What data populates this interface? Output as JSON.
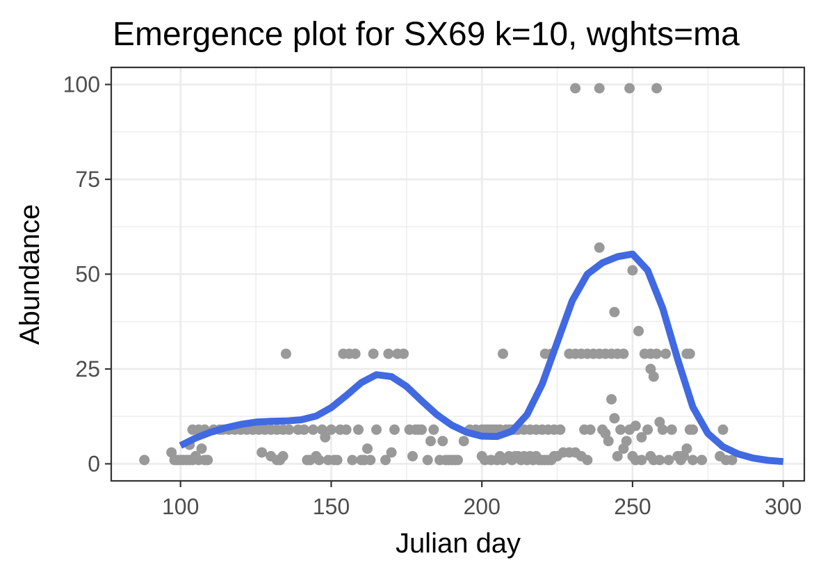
{
  "chart_data": {
    "type": "scatter",
    "title": "Emergence plot for SX69 k=10, wghts=ma",
    "xlabel": "Julian day",
    "ylabel": "Abundance",
    "xlim": [
      77,
      307
    ],
    "ylim": [
      -4.5,
      104.5
    ],
    "xticks": [
      100,
      150,
      200,
      250,
      300
    ],
    "xtick_labels": [
      "100",
      "150",
      "200",
      "250",
      "300"
    ],
    "yticks": [
      0,
      25,
      50,
      75,
      100
    ],
    "ytick_labels": [
      "0",
      "25",
      "50",
      "75",
      "100"
    ],
    "grid": true,
    "legend": "none",
    "colors": {
      "points": "#999999",
      "curve": "#4169e1",
      "grid": "#ebebeb",
      "frame": "#333333"
    },
    "series": [
      {
        "type": "scatter",
        "points": [
          [
            88,
            1
          ],
          [
            97,
            3
          ],
          [
            98,
            1
          ],
          [
            99,
            1
          ],
          [
            100,
            1
          ],
          [
            101,
            1
          ],
          [
            102,
            1
          ],
          [
            103,
            1
          ],
          [
            104,
            1
          ],
          [
            105,
            2
          ],
          [
            106,
            1
          ],
          [
            107,
            4
          ],
          [
            108,
            1
          ],
          [
            109,
            1
          ],
          [
            103,
            5
          ],
          [
            104,
            9
          ],
          [
            106,
            9
          ],
          [
            108,
            9
          ],
          [
            111,
            9
          ],
          [
            113,
            9
          ],
          [
            114,
            9
          ],
          [
            116,
            9
          ],
          [
            118,
            9
          ],
          [
            120,
            9
          ],
          [
            122,
            9
          ],
          [
            124,
            9
          ],
          [
            126,
            9
          ],
          [
            128,
            9
          ],
          [
            130,
            9
          ],
          [
            132,
            9
          ],
          [
            134,
            9
          ],
          [
            136,
            9
          ],
          [
            127,
            3
          ],
          [
            130,
            2
          ],
          [
            132,
            1
          ],
          [
            133,
            1
          ],
          [
            134,
            2
          ],
          [
            135,
            29
          ],
          [
            139,
            9
          ],
          [
            141,
            9
          ],
          [
            142,
            1
          ],
          [
            143,
            1
          ],
          [
            144,
            9
          ],
          [
            145,
            2
          ],
          [
            146,
            1
          ],
          [
            147,
            9
          ],
          [
            148,
            7
          ],
          [
            149,
            1
          ],
          [
            150,
            9
          ],
          [
            151,
            1
          ],
          [
            152,
            1
          ],
          [
            153,
            9
          ],
          [
            154,
            29
          ],
          [
            155,
            9
          ],
          [
            156,
            29
          ],
          [
            157,
            1
          ],
          [
            158,
            29
          ],
          [
            159,
            9
          ],
          [
            160,
            1
          ],
          [
            161,
            1
          ],
          [
            162,
            4
          ],
          [
            163,
            1
          ],
          [
            164,
            29
          ],
          [
            165,
            9
          ],
          [
            168,
            1
          ],
          [
            169,
            29
          ],
          [
            170,
            3
          ],
          [
            171,
            9
          ],
          [
            172,
            29
          ],
          [
            174,
            29
          ],
          [
            176,
            9
          ],
          [
            177,
            2
          ],
          [
            178,
            9
          ],
          [
            179,
            9
          ],
          [
            180,
            9
          ],
          [
            182,
            1
          ],
          [
            183,
            6
          ],
          [
            184,
            9
          ],
          [
            186,
            1
          ],
          [
            187,
            6
          ],
          [
            188,
            1
          ],
          [
            189,
            1
          ],
          [
            190,
            1
          ],
          [
            191,
            1
          ],
          [
            192,
            1
          ],
          [
            194,
            6
          ],
          [
            196,
            9
          ],
          [
            198,
            9
          ],
          [
            200,
            9
          ],
          [
            201,
            9
          ],
          [
            202,
            9
          ],
          [
            203,
            9
          ],
          [
            204,
            9
          ],
          [
            205,
            9
          ],
          [
            206,
            9
          ],
          [
            207,
            29
          ],
          [
            208,
            9
          ],
          [
            209,
            9
          ],
          [
            210,
            9
          ],
          [
            211,
            9
          ],
          [
            200,
            2
          ],
          [
            201,
            1
          ],
          [
            203,
            1
          ],
          [
            205,
            1
          ],
          [
            206,
            2
          ],
          [
            207,
            1
          ],
          [
            209,
            2
          ],
          [
            210,
            1
          ],
          [
            211,
            2
          ],
          [
            212,
            2
          ],
          [
            213,
            1
          ],
          [
            214,
            2
          ],
          [
            215,
            1
          ],
          [
            216,
            2
          ],
          [
            217,
            1
          ],
          [
            218,
            2
          ],
          [
            219,
            1
          ],
          [
            220,
            1
          ],
          [
            221,
            1
          ],
          [
            222,
            1
          ],
          [
            223,
            1
          ],
          [
            224,
            2
          ],
          [
            212,
            9
          ],
          [
            214,
            9
          ],
          [
            216,
            9
          ],
          [
            218,
            9
          ],
          [
            220,
            9
          ],
          [
            221,
            29
          ],
          [
            222,
            9
          ],
          [
            223,
            29
          ],
          [
            224,
            9
          ],
          [
            226,
            9
          ],
          [
            225,
            2
          ],
          [
            227,
            3
          ],
          [
            229,
            3
          ],
          [
            231,
            3
          ],
          [
            233,
            2
          ],
          [
            235,
            1
          ],
          [
            229,
            29
          ],
          [
            231,
            29
          ],
          [
            233,
            29
          ],
          [
            235,
            29
          ],
          [
            237,
            29
          ],
          [
            239,
            29
          ],
          [
            241,
            29
          ],
          [
            243,
            29
          ],
          [
            245,
            29
          ],
          [
            247,
            29
          ],
          [
            231,
            99
          ],
          [
            234,
            9
          ],
          [
            236,
            9
          ],
          [
            239,
            99
          ],
          [
            239,
            57
          ],
          [
            240,
            9
          ],
          [
            241,
            8
          ],
          [
            242,
            6
          ],
          [
            243,
            17
          ],
          [
            244,
            40
          ],
          [
            244,
            12
          ],
          [
            245,
            2
          ],
          [
            246,
            9
          ],
          [
            247,
            4
          ],
          [
            248,
            6
          ],
          [
            249,
            99
          ],
          [
            249,
            9
          ],
          [
            250,
            51
          ],
          [
            250,
            2
          ],
          [
            251,
            10
          ],
          [
            251,
            1
          ],
          [
            252,
            35
          ],
          [
            253,
            7
          ],
          [
            253,
            1
          ],
          [
            254,
            29
          ],
          [
            255,
            9
          ],
          [
            256,
            25
          ],
          [
            256,
            29
          ],
          [
            257,
            23
          ],
          [
            257,
            1
          ],
          [
            258,
            99
          ],
          [
            258,
            29
          ],
          [
            259,
            11
          ],
          [
            259,
            1
          ],
          [
            260,
            9
          ],
          [
            261,
            29
          ],
          [
            262,
            1
          ],
          [
            263,
            9
          ],
          [
            266,
            2
          ],
          [
            267,
            2
          ],
          [
            268,
            4
          ],
          [
            268,
            29
          ],
          [
            269,
            29
          ],
          [
            269,
            9
          ],
          [
            270,
            1
          ],
          [
            270,
            9
          ],
          [
            273,
            1
          ],
          [
            279,
            2
          ],
          [
            280,
            9
          ],
          [
            281,
            1
          ],
          [
            283,
            1
          ],
          [
            256,
            2
          ],
          [
            265,
            2
          ],
          [
            266,
            1
          ]
        ]
      },
      {
        "type": "line",
        "points": [
          [
            100,
            4.8
          ],
          [
            105,
            6.8
          ],
          [
            110,
            8.3
          ],
          [
            115,
            9.5
          ],
          [
            120,
            10.4
          ],
          [
            125,
            11.0
          ],
          [
            130,
            11.2
          ],
          [
            135,
            11.3
          ],
          [
            140,
            11.6
          ],
          [
            145,
            12.6
          ],
          [
            150,
            14.8
          ],
          [
            155,
            18.0
          ],
          [
            160,
            21.4
          ],
          [
            165,
            23.5
          ],
          [
            170,
            23.0
          ],
          [
            175,
            20.4
          ],
          [
            180,
            16.6
          ],
          [
            185,
            13.0
          ],
          [
            190,
            10.2
          ],
          [
            195,
            8.3
          ],
          [
            200,
            7.3
          ],
          [
            205,
            7.2
          ],
          [
            210,
            8.6
          ],
          [
            215,
            13.0
          ],
          [
            220,
            21.0
          ],
          [
            225,
            32.0
          ],
          [
            230,
            43.0
          ],
          [
            235,
            50.0
          ],
          [
            240,
            53.0
          ],
          [
            245,
            54.6
          ],
          [
            250,
            55.3
          ],
          [
            255,
            51.0
          ],
          [
            260,
            41.0
          ],
          [
            265,
            27.5
          ],
          [
            270,
            15.0
          ],
          [
            275,
            8.0
          ],
          [
            280,
            4.5
          ],
          [
            285,
            2.6
          ],
          [
            290,
            1.5
          ],
          [
            295,
            0.9
          ],
          [
            300,
            0.6
          ]
        ]
      }
    ]
  }
}
